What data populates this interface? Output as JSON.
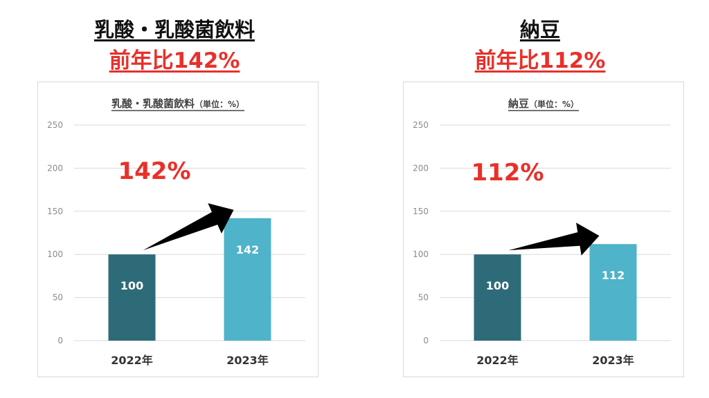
{
  "panels": [
    {
      "headline_title": "乳酸・乳酸菌飲料",
      "headline_ratio": "前年比142%",
      "chart_title": "乳酸・乳酸菌飲料",
      "chart_unit": "（単位：%）",
      "growth_label": "142%"
    },
    {
      "headline_title": "納豆",
      "headline_ratio": "前年比112%",
      "chart_title": "納豆",
      "chart_unit": "（単位：%）",
      "growth_label": "112%"
    }
  ],
  "colors": {
    "bar_2022": "#2e6b78",
    "bar_2023": "#4fb3c9",
    "accent_red": "#e8302a",
    "grid": "#d9d9d9",
    "axis_text": "#8a8a8a",
    "arrow": "#000000"
  },
  "chart_data": [
    {
      "type": "bar",
      "title": "乳酸・乳酸菌飲料（単位：%）",
      "categories": [
        "2022年",
        "2023年"
      ],
      "values": [
        100,
        142
      ],
      "data_labels": [
        "100",
        "142"
      ],
      "ylim": [
        0,
        250
      ],
      "yticks": [
        0,
        50,
        100,
        150,
        200,
        250
      ],
      "grid": true,
      "annotation": "142%"
    },
    {
      "type": "bar",
      "title": "納豆（単位：%）",
      "categories": [
        "2022年",
        "2023年"
      ],
      "values": [
        100,
        112
      ],
      "data_labels": [
        "100",
        "112"
      ],
      "ylim": [
        0,
        250
      ],
      "yticks": [
        0,
        50,
        100,
        150,
        200,
        250
      ],
      "grid": true,
      "annotation": "112%"
    }
  ]
}
